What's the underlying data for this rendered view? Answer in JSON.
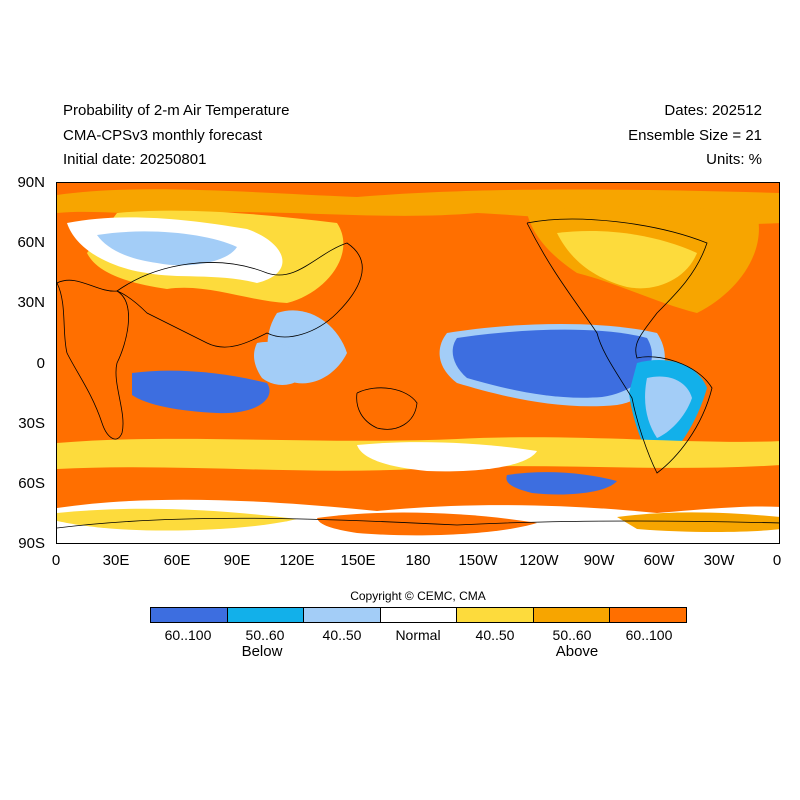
{
  "header": {
    "title_lines": [
      "Probability of 2-m Air Temperature",
      "CMA-CPSv3 monthly forecast",
      "Initial date: 20250801"
    ],
    "info_lines": [
      "Dates: 202512",
      "Ensemble Size = 21",
      "Units: %"
    ]
  },
  "axes": {
    "lat_labels": [
      "90N",
      "60N",
      "30N",
      "0",
      "30S",
      "60S",
      "90S"
    ],
    "lon_labels": [
      "0",
      "30E",
      "60E",
      "90E",
      "120E",
      "150E",
      "180",
      "150W",
      "120W",
      "90W",
      "60W",
      "30W",
      "0"
    ]
  },
  "copyright": "Copyright © CEMC, CMA",
  "legend": {
    "boxes": [
      {
        "label": "60..100",
        "color": "#3d6ee0"
      },
      {
        "label": "50..60",
        "color": "#12b0ea"
      },
      {
        "label": "40..50",
        "color": "#a3cdf7"
      },
      {
        "label": "Normal",
        "color": "#ffffff"
      },
      {
        "label": "40..50",
        "color": "#fddb3c"
      },
      {
        "label": "50..60",
        "color": "#f7a500"
      },
      {
        "label": "60..100",
        "color": "#ff6f00"
      }
    ],
    "below_label": "Below",
    "above_label": "Above"
  }
}
